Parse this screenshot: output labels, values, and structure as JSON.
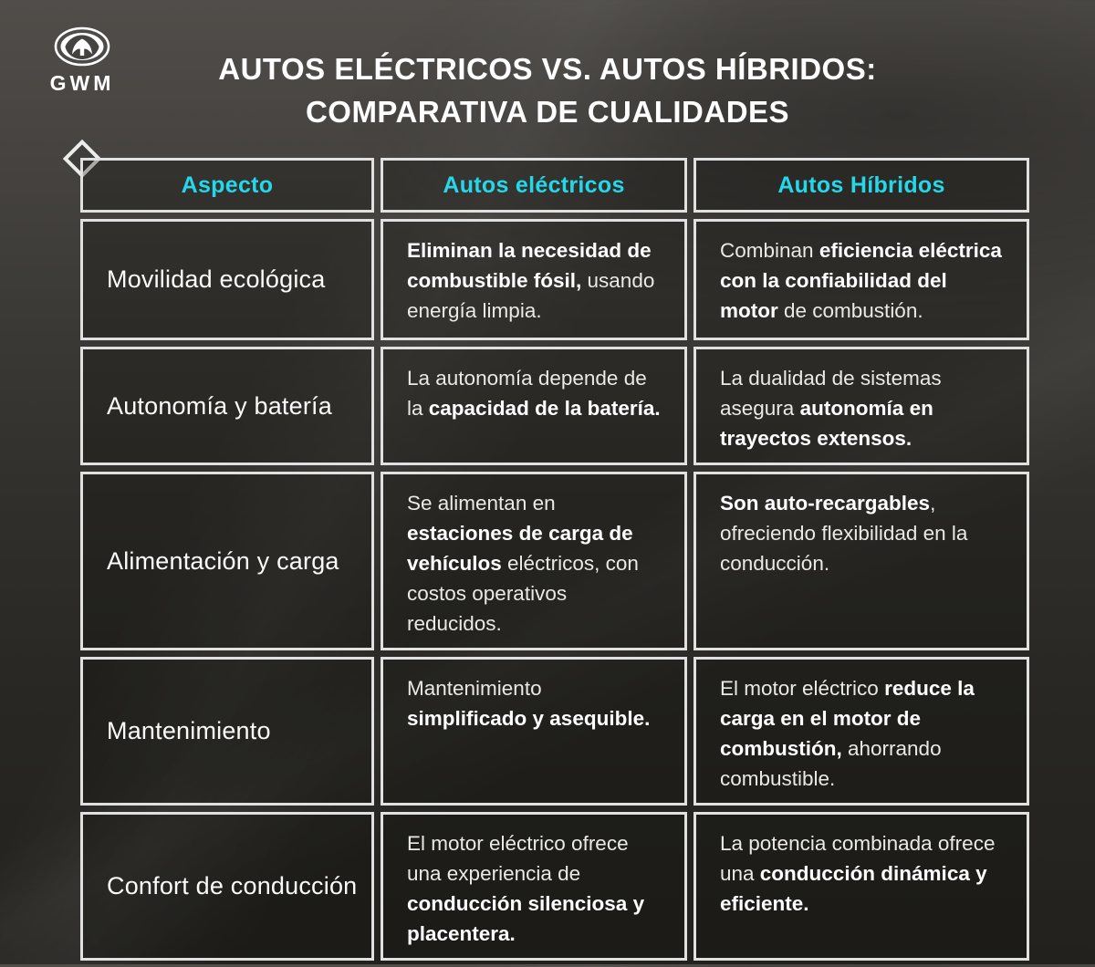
{
  "brand": {
    "wordmark": "GWM"
  },
  "title": {
    "line1": "AUTOS ELÉCTRICOS VS. AUTOS HÍBRIDOS:",
    "line2": "COMPARATIVA DE CUALIDADES"
  },
  "colors": {
    "accent_cyan": "#25d8e9",
    "border_white": "#e0e0e0",
    "bg_top": "#514e4a",
    "bg_bottom": "#22211e"
  },
  "table": {
    "headers": [
      {
        "label": "Aspecto"
      },
      {
        "label": "Autos eléctricos"
      },
      {
        "label": "Autos Híbridos"
      }
    ],
    "rows": [
      {
        "aspect": "Movilidad ecológica",
        "electric": [
          {
            "t": "Eliminan la necesidad de combustible fósil,",
            "b": true
          },
          {
            "t": " usando energía limpia.",
            "b": false
          }
        ],
        "hybrid": [
          {
            "t": "Combinan ",
            "b": false
          },
          {
            "t": "eficiencia eléctrica con la confiabilidad del motor",
            "b": true
          },
          {
            "t": " de combustión.",
            "b": false
          }
        ]
      },
      {
        "aspect": "Autonomía y batería",
        "electric": [
          {
            "t": "La autonomía depende de la ",
            "b": false
          },
          {
            "t": "capacidad de la batería.",
            "b": true
          }
        ],
        "hybrid": [
          {
            "t": "La dualidad de sistemas asegura ",
            "b": false
          },
          {
            "t": "autonomía en trayectos extensos.",
            "b": true
          }
        ]
      },
      {
        "aspect": "Alimentación y carga",
        "electric": [
          {
            "t": "Se alimentan en ",
            "b": false
          },
          {
            "t": "estaciones de carga de vehículos",
            "b": true
          },
          {
            "t": " eléctricos, con costos operativos reducidos.",
            "b": false
          }
        ],
        "hybrid": [
          {
            "t": "Son auto-recargables",
            "b": true
          },
          {
            "t": ", ofreciendo flexibilidad en la conducción.",
            "b": false
          }
        ]
      },
      {
        "aspect": "Mantenimiento",
        "electric": [
          {
            "t": "Mantenimiento ",
            "b": false
          },
          {
            "t": "simplificado y asequible.",
            "b": true
          }
        ],
        "hybrid": [
          {
            "t": "El motor eléctrico ",
            "b": false
          },
          {
            "t": "reduce la carga en el motor de combustión,",
            "b": true
          },
          {
            "t": " ahorrando combustible.",
            "b": false
          }
        ]
      },
      {
        "aspect": "Confort de conducción",
        "electric": [
          {
            "t": "El motor eléctrico ofrece una experiencia de ",
            "b": false
          },
          {
            "t": "conducción silenciosa y placentera.",
            "b": true
          }
        ],
        "hybrid": [
          {
            "t": "La potencia combinada ofrece una ",
            "b": false
          },
          {
            "t": "conducción dinámica y eficiente.",
            "b": true
          }
        ]
      }
    ]
  }
}
